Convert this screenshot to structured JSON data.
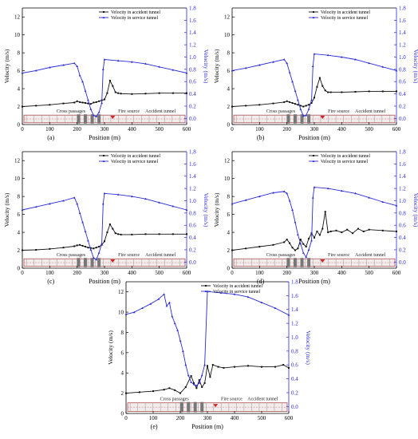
{
  "chart_data": [
    {
      "type": "line",
      "label": "(a)",
      "xlabel": "Position (m)",
      "ylabel_left": "Velocity (m/s)",
      "ylabel_right": "Velocity (m/s)",
      "xlim": [
        0,
        600
      ],
      "ylim_left": [
        0,
        13
      ],
      "ylim_right": [
        -0.1,
        1.8
      ],
      "x_ticks": [
        0,
        100,
        200,
        300,
        400,
        500,
        600
      ],
      "y_left_ticks": [
        0,
        2,
        4,
        6,
        8,
        10,
        12
      ],
      "y_right_ticks": [
        0.0,
        0.2,
        0.4,
        0.6,
        0.8,
        1.0,
        1.2,
        1.4,
        1.6,
        1.8
      ],
      "legend": [
        "Velocity in accident tunnel",
        "Velocity in service tunnel"
      ],
      "annotations": [
        "Cross passages",
        "Fire source",
        "Accident tunnel"
      ],
      "series": [
        {
          "name": "Velocity in accident tunnel",
          "axis": "left",
          "color": "#111111",
          "x": [
            0,
            50,
            100,
            150,
            190,
            200,
            210,
            220,
            230,
            240,
            250,
            260,
            270,
            280,
            290,
            300,
            310,
            320,
            330,
            340,
            350,
            360,
            400,
            450,
            500,
            550,
            600
          ],
          "y": [
            2.0,
            2.1,
            2.2,
            2.35,
            2.45,
            2.6,
            2.5,
            2.45,
            2.4,
            2.35,
            2.3,
            2.45,
            2.5,
            2.6,
            2.7,
            2.8,
            3.5,
            4.9,
            4.3,
            3.6,
            3.5,
            3.45,
            3.4,
            3.45,
            3.5,
            3.5,
            3.5
          ]
        },
        {
          "name": "Velocity in service tunnel",
          "axis": "right",
          "color": "#2b2bd6",
          "x": [
            0,
            50,
            100,
            150,
            190,
            200,
            210,
            220,
            230,
            240,
            250,
            260,
            270,
            280,
            290,
            295,
            300,
            350,
            400,
            450,
            500,
            550,
            600
          ],
          "y": [
            0.74,
            0.78,
            0.83,
            0.87,
            0.9,
            0.85,
            0.7,
            0.6,
            0.45,
            0.3,
            0.15,
            0.05,
            0.03,
            0.1,
            0.25,
            0.8,
            0.96,
            0.94,
            0.92,
            0.89,
            0.84,
            0.79,
            0.74
          ]
        }
      ]
    },
    {
      "type": "line",
      "label": "(b)",
      "xlabel": "Position (m)",
      "ylabel_left": "Velocity (m/s)",
      "ylabel_right": "Velocity (m/s)",
      "xlim": [
        0,
        600
      ],
      "ylim_left": [
        0,
        13
      ],
      "ylim_right": [
        -0.1,
        1.8
      ],
      "x_ticks": [
        0,
        100,
        200,
        300,
        400,
        500,
        600
      ],
      "y_left_ticks": [
        0,
        2,
        4,
        6,
        8,
        10,
        12
      ],
      "y_right_ticks": [
        0.0,
        0.2,
        0.4,
        0.6,
        0.8,
        1.0,
        1.2,
        1.4,
        1.6,
        1.8
      ],
      "legend": [
        "Velocity in accident tunnel",
        "Velocity in service tunnel"
      ],
      "annotations": [
        "Cross passages",
        "Fire source",
        "Accident tunnel"
      ],
      "series": [
        {
          "name": "Velocity in accident tunnel",
          "axis": "left",
          "color": "#111111",
          "x": [
            0,
            50,
            100,
            150,
            190,
            200,
            210,
            220,
            230,
            240,
            250,
            260,
            270,
            280,
            290,
            300,
            310,
            320,
            330,
            340,
            350,
            360,
            400,
            450,
            500,
            550,
            600
          ],
          "y": [
            2.0,
            2.1,
            2.2,
            2.35,
            2.5,
            2.6,
            2.5,
            2.4,
            2.3,
            2.2,
            2.1,
            2.0,
            2.1,
            2.2,
            2.4,
            3.0,
            4.2,
            5.2,
            4.3,
            3.8,
            3.6,
            3.6,
            3.6,
            3.65,
            3.7,
            3.7,
            3.7
          ]
        },
        {
          "name": "Velocity in service tunnel",
          "axis": "right",
          "color": "#2b2bd6",
          "x": [
            0,
            50,
            100,
            150,
            190,
            200,
            210,
            220,
            230,
            240,
            250,
            260,
            270,
            280,
            290,
            295,
            300,
            350,
            400,
            450,
            500,
            550,
            600
          ],
          "y": [
            0.78,
            0.82,
            0.87,
            0.92,
            0.96,
            0.9,
            0.75,
            0.6,
            0.45,
            0.3,
            0.15,
            0.04,
            0.05,
            0.15,
            0.3,
            0.85,
            1.05,
            1.03,
            1.0,
            0.96,
            0.9,
            0.84,
            0.78
          ]
        }
      ]
    },
    {
      "type": "line",
      "label": "(c)",
      "xlabel": "Position (m)",
      "ylabel_left": "Velocity (m/s)",
      "ylabel_right": "Velocity (m/s)",
      "xlim": [
        0,
        600
      ],
      "ylim_left": [
        0,
        13
      ],
      "ylim_right": [
        -0.1,
        1.8
      ],
      "x_ticks": [
        0,
        100,
        200,
        300,
        400,
        500,
        600
      ],
      "y_left_ticks": [
        0,
        2,
        4,
        6,
        8,
        10,
        12
      ],
      "y_right_ticks": [
        0.0,
        0.2,
        0.4,
        0.6,
        0.8,
        1.0,
        1.2,
        1.4,
        1.6,
        1.8
      ],
      "legend": [
        "Velocity in accident tunnel",
        "Velocity in service tunnel"
      ],
      "annotations": [
        "Cross passages",
        "Fire source",
        "Accident tunnel"
      ],
      "series": [
        {
          "name": "Velocity in accident tunnel",
          "axis": "left",
          "color": "#111111",
          "x": [
            0,
            50,
            100,
            150,
            190,
            200,
            210,
            220,
            230,
            240,
            250,
            260,
            270,
            280,
            290,
            300,
            310,
            320,
            330,
            340,
            350,
            360,
            400,
            450,
            500,
            550,
            600
          ],
          "y": [
            2.0,
            2.05,
            2.15,
            2.3,
            2.45,
            2.55,
            2.6,
            2.5,
            2.4,
            2.3,
            2.25,
            2.2,
            2.3,
            2.4,
            2.6,
            3.0,
            4.0,
            4.9,
            4.4,
            3.9,
            3.8,
            3.75,
            3.75,
            3.8,
            3.8,
            3.8,
            3.8
          ]
        },
        {
          "name": "Velocity in service tunnel",
          "axis": "right",
          "color": "#2b2bd6",
          "x": [
            0,
            50,
            100,
            150,
            190,
            200,
            210,
            220,
            230,
            240,
            250,
            260,
            270,
            280,
            290,
            295,
            300,
            350,
            400,
            450,
            500,
            550,
            600
          ],
          "y": [
            0.85,
            0.9,
            0.95,
            1.0,
            1.05,
            0.95,
            0.8,
            0.65,
            0.5,
            0.35,
            0.2,
            0.07,
            0.04,
            0.15,
            0.3,
            0.95,
            1.12,
            1.1,
            1.07,
            1.03,
            0.97,
            0.91,
            0.85
          ]
        }
      ]
    },
    {
      "type": "line",
      "label": "(d)",
      "xlabel": "Position (m)",
      "ylabel_left": "Velocity (m/s)",
      "ylabel_right": "Velocity (m/s)",
      "xlim": [
        0,
        600
      ],
      "ylim_left": [
        0,
        13
      ],
      "ylim_right": [
        -0.1,
        1.8
      ],
      "x_ticks": [
        0,
        100,
        200,
        300,
        400,
        500,
        600
      ],
      "y_left_ticks": [
        0,
        2,
        4,
        6,
        8,
        10,
        12
      ],
      "y_right_ticks": [
        0.0,
        0.2,
        0.4,
        0.6,
        0.8,
        1.0,
        1.2,
        1.4,
        1.6,
        1.8
      ],
      "legend": [
        "Velocity in accident tunnel",
        "Velocity in service tunnel"
      ],
      "annotations": [
        "Cross passages",
        "Fire source",
        "Accident tunnel"
      ],
      "series": [
        {
          "name": "Velocity in accident tunnel",
          "axis": "left",
          "color": "#111111",
          "x": [
            0,
            50,
            100,
            150,
            190,
            200,
            210,
            220,
            230,
            240,
            250,
            260,
            270,
            280,
            290,
            300,
            310,
            320,
            330,
            340,
            350,
            360,
            380,
            400,
            420,
            440,
            460,
            480,
            500,
            550,
            600
          ],
          "y": [
            2.0,
            2.2,
            2.4,
            2.6,
            2.9,
            3.2,
            2.8,
            2.3,
            2.0,
            2.2,
            3.2,
            2.7,
            2.4,
            3.3,
            3.9,
            3.4,
            4.1,
            3.7,
            4.4,
            6.3,
            4.0,
            4.1,
            4.2,
            4.0,
            4.3,
            3.9,
            4.4,
            4.1,
            4.3,
            4.2,
            4.1
          ]
        },
        {
          "name": "Velocity in service tunnel",
          "axis": "right",
          "color": "#2b2bd6",
          "x": [
            0,
            50,
            100,
            150,
            190,
            200,
            210,
            220,
            230,
            240,
            250,
            260,
            270,
            280,
            290,
            295,
            300,
            350,
            400,
            450,
            500,
            550,
            600
          ],
          "y": [
            0.95,
            1.01,
            1.07,
            1.13,
            1.15,
            1.12,
            1.0,
            0.85,
            0.65,
            0.45,
            0.3,
            0.15,
            0.08,
            0.2,
            0.35,
            1.05,
            1.22,
            1.2,
            1.16,
            1.12,
            1.05,
            0.98,
            0.92
          ]
        }
      ]
    },
    {
      "type": "line",
      "label": "(e)",
      "xlabel": "Position (m)",
      "ylabel_left": "Velocity (m/s)",
      "ylabel_right": "Velocity (m/s)",
      "xlim": [
        0,
        600
      ],
      "ylim_left": [
        0,
        13
      ],
      "ylim_right": [
        -0.1,
        1.8
      ],
      "x_ticks": [
        0,
        100,
        200,
        300,
        400,
        500,
        600
      ],
      "y_left_ticks": [
        0,
        2,
        4,
        6,
        8,
        10,
        12
      ],
      "y_right_ticks": [
        0.0,
        0.2,
        0.4,
        0.6,
        0.8,
        1.0,
        1.2,
        1.4,
        1.6,
        1.8
      ],
      "legend": [
        "Velocity in accident tunnel",
        "Velocity in service tunnel"
      ],
      "annotations": [
        "Cross passages",
        "Fire source",
        "Accident tunnel"
      ],
      "series": [
        {
          "name": "Velocity in accident tunnel",
          "axis": "left",
          "color": "#111111",
          "x": [
            0,
            50,
            100,
            140,
            160,
            180,
            200,
            220,
            240,
            250,
            260,
            270,
            280,
            290,
            300,
            310,
            320,
            340,
            360,
            400,
            450,
            500,
            550,
            580,
            600
          ],
          "y": [
            2.0,
            2.1,
            2.2,
            2.35,
            2.5,
            2.3,
            2.0,
            2.6,
            3.7,
            3.0,
            2.5,
            3.3,
            2.6,
            3.0,
            4.7,
            3.6,
            4.8,
            4.6,
            4.5,
            4.6,
            4.7,
            4.6,
            4.6,
            4.8,
            4.5
          ]
        },
        {
          "name": "Velocity in service tunnel",
          "axis": "right",
          "color": "#2b2bd6",
          "x": [
            0,
            30,
            60,
            90,
            120,
            140,
            150,
            160,
            170,
            180,
            190,
            200,
            210,
            220,
            230,
            240,
            250,
            260,
            270,
            280,
            290,
            300,
            350,
            400,
            450,
            500,
            550,
            600
          ],
          "y": [
            1.33,
            1.36,
            1.42,
            1.48,
            1.55,
            1.62,
            1.45,
            1.5,
            1.3,
            1.2,
            1.1,
            0.95,
            0.8,
            0.6,
            0.45,
            0.35,
            0.32,
            0.3,
            0.34,
            0.45,
            0.6,
            1.66,
            1.64,
            1.62,
            1.58,
            1.5,
            1.42,
            1.32
          ]
        }
      ]
    }
  ]
}
